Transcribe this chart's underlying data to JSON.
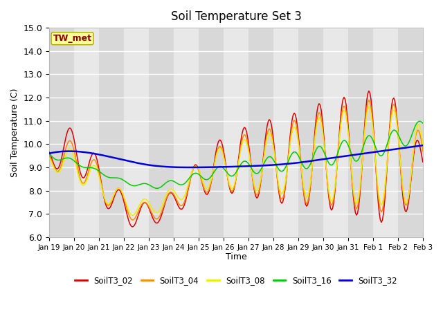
{
  "title": "Soil Temperature Set 3",
  "xlabel": "Time",
  "ylabel": "Soil Temperature (C)",
  "ylim": [
    6.0,
    15.0
  ],
  "yticks": [
    6.0,
    7.0,
    8.0,
    9.0,
    10.0,
    11.0,
    12.0,
    13.0,
    14.0,
    15.0
  ],
  "bg_color": "#e8e8e8",
  "annotation_text": "TW_met",
  "annotation_color": "#8b0000",
  "annotation_bg": "#ffff99",
  "series": {
    "SoilT3_02": {
      "color": "#dd0000",
      "lw": 1.1
    },
    "SoilT3_04": {
      "color": "#ff8800",
      "lw": 1.1
    },
    "SoilT3_08": {
      "color": "#eeee00",
      "lw": 1.1
    },
    "SoilT3_16": {
      "color": "#00cc00",
      "lw": 1.1
    },
    "SoilT3_32": {
      "color": "#0000dd",
      "lw": 1.8
    }
  },
  "legend_colors": {
    "SoilT3_02": "#dd0000",
    "SoilT3_04": "#ff8800",
    "SoilT3_08": "#eeee00",
    "SoilT3_16": "#00cc00",
    "SoilT3_32": "#0000dd"
  },
  "xtick_labels": [
    "Jan 19",
    "Jan 20",
    "Jan 21",
    "Jan 22",
    "Jan 23",
    "Jan 24",
    "Jan 25",
    "Jan 26",
    "Jan 27",
    "Jan 28",
    "Jan 29",
    "Jan 30",
    "Jan 31",
    "Feb 1",
    "Feb 2",
    "Feb 3"
  ],
  "grid_color": "#ffffff",
  "title_fontsize": 12,
  "figsize": [
    6.4,
    4.8
  ],
  "dpi": 100
}
